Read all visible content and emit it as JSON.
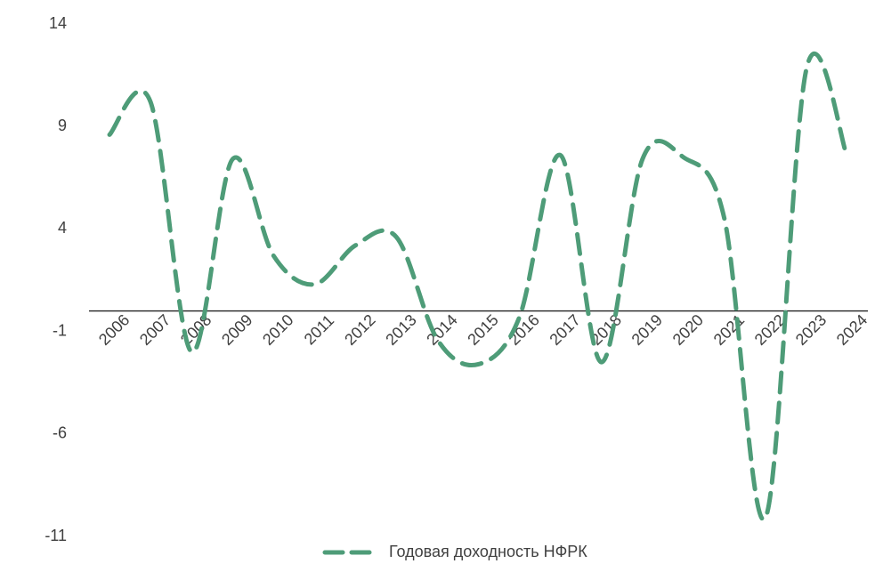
{
  "chart_data": {
    "type": "line",
    "categories": [
      "2006",
      "2007",
      "2008",
      "2009",
      "2010",
      "2011",
      "2012",
      "2013",
      "2014",
      "2015",
      "2016",
      "2017",
      "2018",
      "2019",
      "2020",
      "2021",
      "2022",
      "2023",
      "2024"
    ],
    "series": [
      {
        "name": "Годовая доходность НФРК",
        "color": "#4e9c78",
        "values": [
          8.6,
          10.2,
          -2.0,
          7.4,
          2.7,
          1.3,
          3.2,
          3.6,
          -1.4,
          -2.6,
          -0.3,
          7.6,
          -2.5,
          7.4,
          7.5,
          4.5,
          -10.1,
          11.8,
          7.5
        ]
      }
    ],
    "ylim": [
      -11,
      14
    ],
    "yticks": [
      14,
      9,
      4,
      -1,
      -6,
      -11
    ],
    "legend": "bottom",
    "smooth": true
  }
}
